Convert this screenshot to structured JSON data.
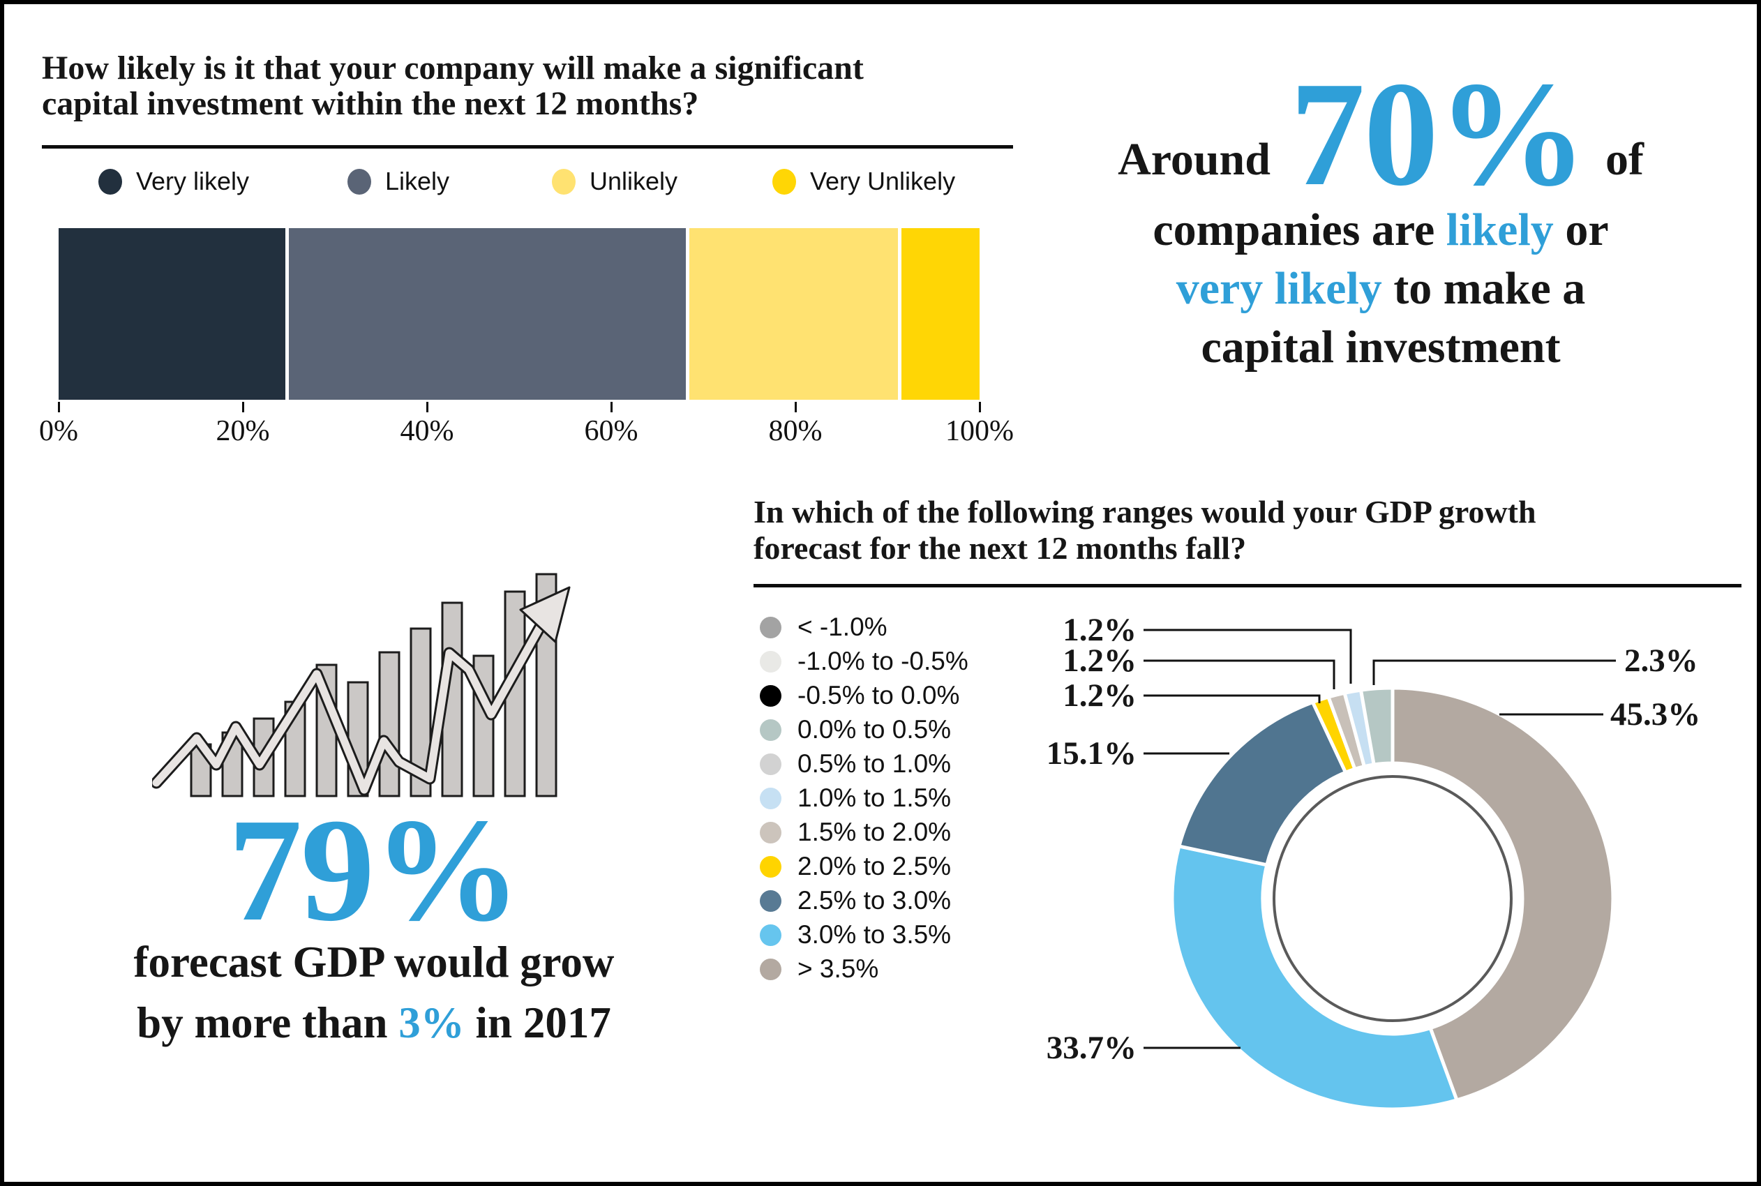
{
  "accent_blue": "#2f9fd8",
  "panel_capex": {
    "title_line1": "How likely is it that your company will make a significant",
    "title_line2": "capital investment within the next 12 months?",
    "legend": [
      {
        "label": "Very likely",
        "color": "#22303e"
      },
      {
        "label": "Likely",
        "color": "#5a6476"
      },
      {
        "label": "Unlikely",
        "color": "#ffe271"
      },
      {
        "label": "Very Unlikely",
        "color": "#ffd605"
      }
    ],
    "segments": [
      {
        "label": "Very likely",
        "value": 25.0,
        "color": "#22303e"
      },
      {
        "label": "Likely",
        "value": 43.5,
        "color": "#5a6476"
      },
      {
        "label": "Unlikely",
        "value": 23.0,
        "color": "#ffe271"
      },
      {
        "label": "Very Unlikely",
        "value": 8.5,
        "color": "#ffd605"
      }
    ],
    "ticks": [
      "0%",
      "20%",
      "40%",
      "60%",
      "80%",
      "100%"
    ]
  },
  "panel_callout": {
    "prefix": "Around",
    "big": "70%",
    "suffix": "of",
    "l2_pre": "companies are ",
    "l2_blue": "likely",
    "l2_post": " or",
    "l3_blue": "very likely",
    "l3_post": " to make a",
    "l4": "capital investment"
  },
  "panel_gdp79": {
    "big": "79%",
    "line1": "forecast GDP would grow",
    "l2_pre": "by more than ",
    "l2_blue": "3%",
    "l2_post": " in 2017"
  },
  "panel_gdp_ranges": {
    "title_line1": "In which of the following ranges would your GDP growth",
    "title_line2": "forecast for the next 12 months fall?",
    "legend": [
      {
        "label": "< -1.0%",
        "color": "#a3a3a3"
      },
      {
        "label": "-1.0% to -0.5%",
        "color": "#e9e9e6"
      },
      {
        "label": "-0.5% to 0.0%",
        "color": "#000000"
      },
      {
        "label": "0.0% to 0.5%",
        "color": "#b5c7c4"
      },
      {
        "label": "0.5% to 1.0%",
        "color": "#d2d2d2"
      },
      {
        "label": "1.0% to 1.5%",
        "color": "#c6e0f3"
      },
      {
        "label": "1.5% to 2.0%",
        "color": "#ccc4bc"
      },
      {
        "label": "2.0% to 2.5%",
        "color": "#ffd400"
      },
      {
        "label": "2.5% to 3.0%",
        "color": "#587a94"
      },
      {
        "label": "3.0% to 3.5%",
        "color": "#66c5ee"
      },
      {
        "label": "> 3.5%",
        "color": "#b3a9a1"
      }
    ],
    "slices": [
      {
        "range": "> 3.5%",
        "value": 45.3,
        "pct": "45.3%",
        "color": "#b3a9a1"
      },
      {
        "range": "3.0% to 3.5%",
        "value": 33.7,
        "pct": "33.7%",
        "color": "#64c4ee"
      },
      {
        "range": "2.5% to 3.0%",
        "value": 15.1,
        "pct": "15.1%",
        "color": "#507590"
      },
      {
        "range": "2.0% to 2.5%",
        "value": 1.2,
        "pct": "1.2%",
        "color": "#ffd400"
      },
      {
        "range": "1.5% to 2.0%",
        "value": 1.2,
        "pct": "1.2%",
        "color": "#c8c0b8"
      },
      {
        "range": "1.0% to 1.5%",
        "value": 1.2,
        "pct": "1.2%",
        "color": "#c6dff2"
      },
      {
        "range": "0.0% to 0.5%",
        "value": 2.3,
        "pct": "2.3%",
        "color": "#b5c7c4"
      }
    ]
  },
  "chart_data": [
    {
      "type": "bar",
      "variant": "stacked-horizontal",
      "title": "How likely is it that your company will make a significant capital investment within the next 12 months?",
      "categories": [
        "Very likely",
        "Likely",
        "Unlikely",
        "Very Unlikely"
      ],
      "values": [
        25.0,
        43.5,
        23.0,
        8.5
      ],
      "unit": "%",
      "colors": [
        "#22303e",
        "#5a6476",
        "#ffe271",
        "#ffd605"
      ],
      "xlabel": "",
      "ylabel": "",
      "xlim": [
        0,
        100
      ],
      "x_ticks": [
        "0%",
        "20%",
        "40%",
        "60%",
        "80%",
        "100%"
      ],
      "legend_position": "top",
      "grid": false,
      "annotation": "Around 70% of companies are likely or very likely to make a capital investment"
    },
    {
      "type": "pie",
      "variant": "donut",
      "title": "In which of the following ranges would your GDP growth forecast for the next 12 months fall?",
      "categories": [
        "< -1.0%",
        "-1.0% to -0.5%",
        "-0.5% to 0.0%",
        "0.0% to 0.5%",
        "0.5% to 1.0%",
        "1.0% to 1.5%",
        "1.5% to 2.0%",
        "2.0% to 2.5%",
        "2.5% to 3.0%",
        "3.0% to 3.5%",
        "> 3.5%"
      ],
      "values": [
        0,
        0,
        0,
        2.3,
        0,
        1.2,
        1.2,
        1.2,
        15.1,
        33.7,
        45.3
      ],
      "unit": "%",
      "drawn_clockwise_from_top": [
        {
          "category": "> 3.5%",
          "value": 45.3
        },
        {
          "category": "3.0% to 3.5%",
          "value": 33.7
        },
        {
          "category": "2.5% to 3.0%",
          "value": 15.1
        },
        {
          "category": "2.0% to 2.5%",
          "value": 1.2
        },
        {
          "category": "1.5% to 2.0%",
          "value": 1.2
        },
        {
          "category": "1.0% to 1.5%",
          "value": 1.2
        },
        {
          "category": "0.0% to 0.5%",
          "value": 2.3
        }
      ],
      "legend_position": "left",
      "annotation": "79% forecast GDP would grow by more than 3% in 2017"
    }
  ]
}
